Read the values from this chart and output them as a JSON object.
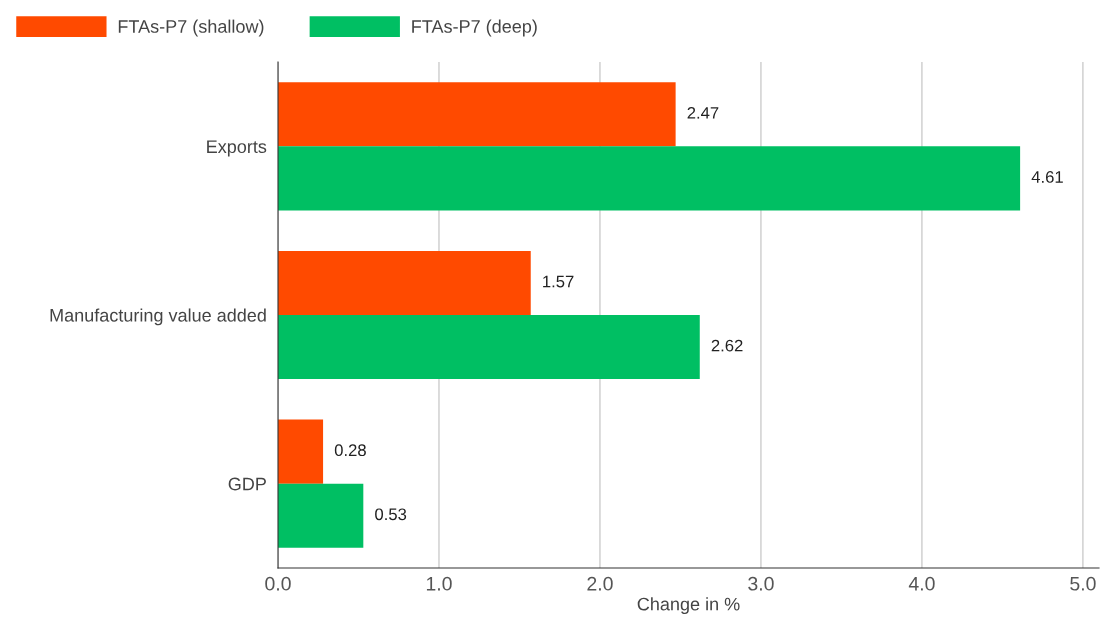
{
  "chart_data": {
    "type": "bar",
    "orientation": "horizontal",
    "xlabel": "Change in %",
    "categories": [
      "Exports",
      "Manufacturing value added",
      "GDP"
    ],
    "series": [
      {
        "name": "FTAs-P7 (shallow)",
        "color": "#ff4a00",
        "values": [
          2.47,
          1.57,
          0.28
        ]
      },
      {
        "name": "FTAs-P7 (deep)",
        "color": "#00bf63",
        "values": [
          4.61,
          2.62,
          0.53
        ]
      }
    ],
    "xlim": [
      0,
      5.1
    ],
    "xticks": [
      {
        "value": 0,
        "label": "0.0"
      },
      {
        "value": 1,
        "label": "1.0"
      },
      {
        "value": 2,
        "label": "2.0"
      },
      {
        "value": 3,
        "label": "3.0"
      },
      {
        "value": 4,
        "label": "4.0"
      },
      {
        "value": 5,
        "label": "5.0"
      }
    ],
    "grid": "x",
    "legend": "top left",
    "data_labels": true
  }
}
